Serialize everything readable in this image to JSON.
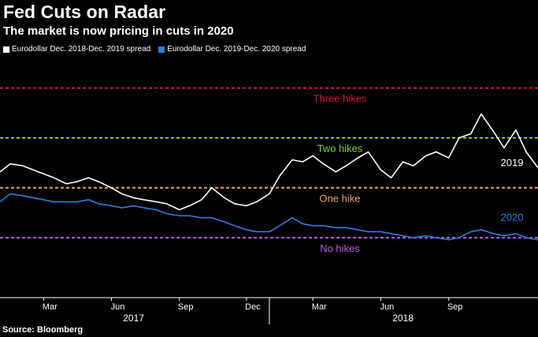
{
  "header": {
    "title": "Fed Cuts on Radar",
    "subtitle": "The market is now pricing in cuts in 2020"
  },
  "legend": [
    {
      "label": "Eurodollar Dec. 2018-Dec. 2019 spread",
      "color": "#ffffff"
    },
    {
      "label": "Eurodollar Dec. 2019-Dec. 2020 spread",
      "color": "#2f7de1"
    }
  ],
  "footer": {
    "source": "Source: Bloomberg"
  },
  "chart_data": {
    "type": "line",
    "x_range": [
      "2017-01-01",
      "2018-12-31"
    ],
    "x_ticks": [
      "Mar",
      "Jun",
      "Sep",
      "Dec",
      "Mar",
      "Jun",
      "Sep"
    ],
    "year_labels": [
      "2017",
      "2018"
    ],
    "y_range": [
      -0.3,
      0.875
    ],
    "y_unit": "number of 25bp hikes priced",
    "grid": false,
    "legend_position": "top-left",
    "reference_lines": [
      {
        "label": "Three hikes",
        "value": 0.75,
        "color": "#e0143c"
      },
      {
        "label": "Two hikes",
        "value": 0.5,
        "color": "#7ed321"
      },
      {
        "label": "One hike",
        "value": 0.25,
        "color": "#f0a47a"
      },
      {
        "label": "No hikes",
        "value": 0.0,
        "color": "#b65ce6"
      }
    ],
    "series": [
      {
        "name": "2019",
        "color": "#ffffff",
        "points": [
          [
            "2017-01-01",
            0.33
          ],
          [
            "2017-01-15",
            0.37
          ],
          [
            "2017-02-01",
            0.36
          ],
          [
            "2017-02-15",
            0.34
          ],
          [
            "2017-03-01",
            0.32
          ],
          [
            "2017-03-15",
            0.3
          ],
          [
            "2017-04-01",
            0.27
          ],
          [
            "2017-04-15",
            0.28
          ],
          [
            "2017-05-01",
            0.3
          ],
          [
            "2017-05-15",
            0.28
          ],
          [
            "2017-06-01",
            0.25
          ],
          [
            "2017-06-15",
            0.22
          ],
          [
            "2017-07-01",
            0.2
          ],
          [
            "2017-07-15",
            0.19
          ],
          [
            "2017-08-01",
            0.18
          ],
          [
            "2017-08-15",
            0.17
          ],
          [
            "2017-09-01",
            0.14
          ],
          [
            "2017-09-15",
            0.16
          ],
          [
            "2017-10-01",
            0.19
          ],
          [
            "2017-10-15",
            0.25
          ],
          [
            "2017-11-01",
            0.2
          ],
          [
            "2017-11-15",
            0.17
          ],
          [
            "2017-12-01",
            0.16
          ],
          [
            "2017-12-15",
            0.18
          ],
          [
            "2018-01-01",
            0.22
          ],
          [
            "2018-01-15",
            0.31
          ],
          [
            "2018-02-01",
            0.39
          ],
          [
            "2018-02-15",
            0.38
          ],
          [
            "2018-03-01",
            0.41
          ],
          [
            "2018-03-15",
            0.37
          ],
          [
            "2018-04-01",
            0.33
          ],
          [
            "2018-04-15",
            0.36
          ],
          [
            "2018-05-01",
            0.4
          ],
          [
            "2018-05-15",
            0.43
          ],
          [
            "2018-06-01",
            0.34
          ],
          [
            "2018-06-15",
            0.3
          ],
          [
            "2018-07-01",
            0.38
          ],
          [
            "2018-07-15",
            0.36
          ],
          [
            "2018-08-01",
            0.41
          ],
          [
            "2018-08-15",
            0.43
          ],
          [
            "2018-09-01",
            0.4
          ],
          [
            "2018-09-15",
            0.5
          ],
          [
            "2018-10-01",
            0.52
          ],
          [
            "2018-10-15",
            0.62
          ],
          [
            "2018-11-01",
            0.53
          ],
          [
            "2018-11-15",
            0.45
          ],
          [
            "2018-12-01",
            0.54
          ],
          [
            "2018-12-15",
            0.43
          ],
          [
            "2018-12-31",
            0.35
          ]
        ]
      },
      {
        "name": "2020",
        "color": "#2f7de1",
        "points": [
          [
            "2017-01-01",
            0.18
          ],
          [
            "2017-01-15",
            0.22
          ],
          [
            "2017-02-01",
            0.21
          ],
          [
            "2017-02-15",
            0.2
          ],
          [
            "2017-03-01",
            0.19
          ],
          [
            "2017-03-15",
            0.18
          ],
          [
            "2017-04-01",
            0.18
          ],
          [
            "2017-04-15",
            0.18
          ],
          [
            "2017-05-01",
            0.19
          ],
          [
            "2017-05-15",
            0.17
          ],
          [
            "2017-06-01",
            0.16
          ],
          [
            "2017-06-15",
            0.15
          ],
          [
            "2017-07-01",
            0.16
          ],
          [
            "2017-07-15",
            0.15
          ],
          [
            "2017-08-01",
            0.14
          ],
          [
            "2017-08-15",
            0.12
          ],
          [
            "2017-09-01",
            0.11
          ],
          [
            "2017-09-15",
            0.11
          ],
          [
            "2017-10-01",
            0.1
          ],
          [
            "2017-10-15",
            0.1
          ],
          [
            "2017-11-01",
            0.08
          ],
          [
            "2017-11-15",
            0.06
          ],
          [
            "2017-12-01",
            0.04
          ],
          [
            "2017-12-15",
            0.03
          ],
          [
            "2018-01-01",
            0.03
          ],
          [
            "2018-01-15",
            0.06
          ],
          [
            "2018-02-01",
            0.1
          ],
          [
            "2018-02-15",
            0.07
          ],
          [
            "2018-03-01",
            0.06
          ],
          [
            "2018-03-15",
            0.06
          ],
          [
            "2018-04-01",
            0.05
          ],
          [
            "2018-04-15",
            0.05
          ],
          [
            "2018-05-01",
            0.04
          ],
          [
            "2018-05-15",
            0.03
          ],
          [
            "2018-06-01",
            0.03
          ],
          [
            "2018-06-15",
            0.02
          ],
          [
            "2018-07-01",
            0.01
          ],
          [
            "2018-07-15",
            0.0
          ],
          [
            "2018-08-01",
            0.01
          ],
          [
            "2018-08-15",
            0.0
          ],
          [
            "2018-09-01",
            -0.01
          ],
          [
            "2018-09-15",
            0.0
          ],
          [
            "2018-10-01",
            0.03
          ],
          [
            "2018-10-15",
            0.04
          ],
          [
            "2018-11-01",
            0.02
          ],
          [
            "2018-11-15",
            0.01
          ],
          [
            "2018-12-01",
            0.02
          ],
          [
            "2018-12-15",
            0.0
          ],
          [
            "2018-12-31",
            -0.01
          ]
        ]
      }
    ]
  }
}
